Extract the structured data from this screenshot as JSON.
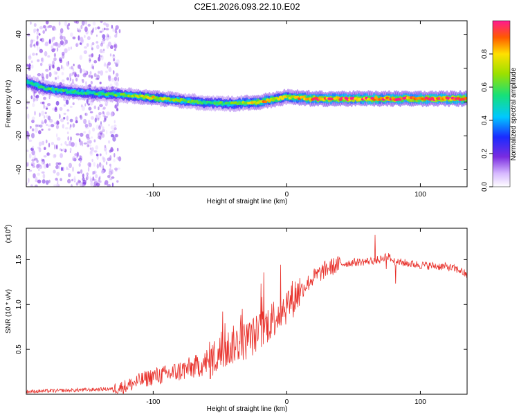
{
  "title": "C2E1.2026.093.22.10.E02",
  "chart_data": [
    {
      "type": "heatmap",
      "title": "C2E1.2026.093.22.10.E02",
      "xlabel": "Height of straight line (km)",
      "ylabel": "Frequency (Hz)",
      "xlim": [
        -195,
        135
      ],
      "ylim": [
        -50,
        48
      ],
      "xticks": [
        -100,
        0,
        100
      ],
      "yticks": [
        -40,
        -20,
        0,
        20,
        40
      ],
      "colorbar": {
        "label": "Normalized spectral amplitude",
        "range": [
          0,
          1
        ],
        "ticks": [
          "0.0",
          "0.2",
          "0.4",
          "0.6",
          "0.8"
        ]
      },
      "ridge": {
        "x": [
          -195,
          -180,
          -160,
          -140,
          -120,
          -100,
          -80,
          -60,
          -40,
          -20,
          0,
          20,
          60,
          100,
          135
        ],
        "frequency": [
          12,
          8,
          6,
          5,
          4,
          2.5,
          1,
          -0.5,
          -1,
          0,
          3,
          2,
          2,
          2,
          2
        ],
        "amplitude": [
          0.5,
          0.55,
          0.55,
          0.55,
          0.6,
          0.75,
          0.65,
          0.55,
          0.6,
          0.8,
          0.75,
          0.9,
          0.9,
          0.95,
          0.95
        ]
      }
    },
    {
      "type": "line",
      "xlabel": "Height of straight line (km)",
      "ylabel": "SNR (10 * v/v)",
      "y_multiplier": "(x10",
      "y_exponent": "4",
      "y_multiplier_close": ")",
      "xlim": [
        -195,
        135
      ],
      "ylim": [
        0,
        1.85
      ],
      "xticks": [
        -100,
        0,
        100
      ],
      "yticks": [
        "0.5",
        "1.0",
        "1.5"
      ],
      "line_color": "#e8302a",
      "series": [
        {
          "name": "SNR",
          "x": [
            -195,
            -170,
            -150,
            -130,
            -120,
            -110,
            -100,
            -90,
            -80,
            -70,
            -60,
            -50,
            -40,
            -30,
            -20,
            -10,
            0,
            10,
            20,
            30,
            40,
            50,
            60,
            70,
            75,
            80,
            90,
            100,
            110,
            120,
            130,
            135
          ],
          "y": [
            0.03,
            0.04,
            0.05,
            0.06,
            0.09,
            0.15,
            0.2,
            0.22,
            0.26,
            0.3,
            0.35,
            0.45,
            0.55,
            0.6,
            0.7,
            0.85,
            1.0,
            1.15,
            1.3,
            1.4,
            1.45,
            1.47,
            1.48,
            1.5,
            1.55,
            1.48,
            1.46,
            1.44,
            1.43,
            1.42,
            1.38,
            1.32
          ]
        }
      ]
    }
  ]
}
